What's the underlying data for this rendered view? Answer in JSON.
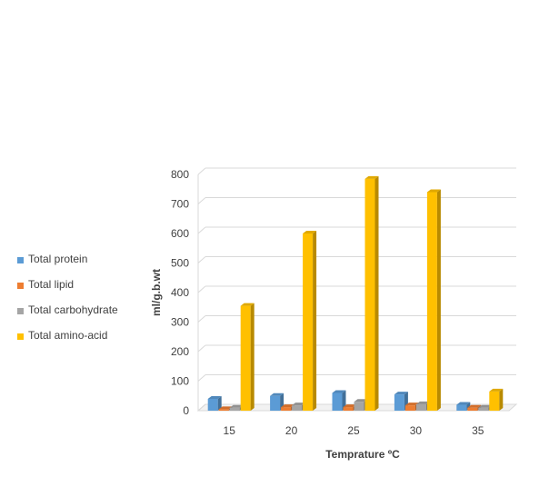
{
  "chart_data": {
    "type": "bar",
    "style": "3d-clustered-column",
    "categories": [
      "15",
      "20",
      "25",
      "30",
      "35"
    ],
    "series": [
      {
        "name": "Total protein",
        "color": "#5B9BD5",
        "values": [
          40,
          50,
          60,
          55,
          20
        ]
      },
      {
        "name": "Total lipid",
        "color": "#ED7D31",
        "values": [
          5,
          12,
          12,
          18,
          10
        ]
      },
      {
        "name": "Total carbohydrate",
        "color": "#A5A5A5",
        "values": [
          10,
          18,
          30,
          22,
          10
        ]
      },
      {
        "name": "Total amino-acid",
        "color": "#FFC000",
        "values": [
          355,
          600,
          785,
          740,
          65
        ]
      }
    ],
    "xlabel": "Temprature ºC",
    "ylabel": "ml/g.b.wt",
    "ylim": [
      0,
      800
    ],
    "yticks": [
      0,
      100,
      200,
      300,
      400,
      500,
      600,
      700,
      800
    ],
    "grid": true,
    "legend_position": "left"
  }
}
